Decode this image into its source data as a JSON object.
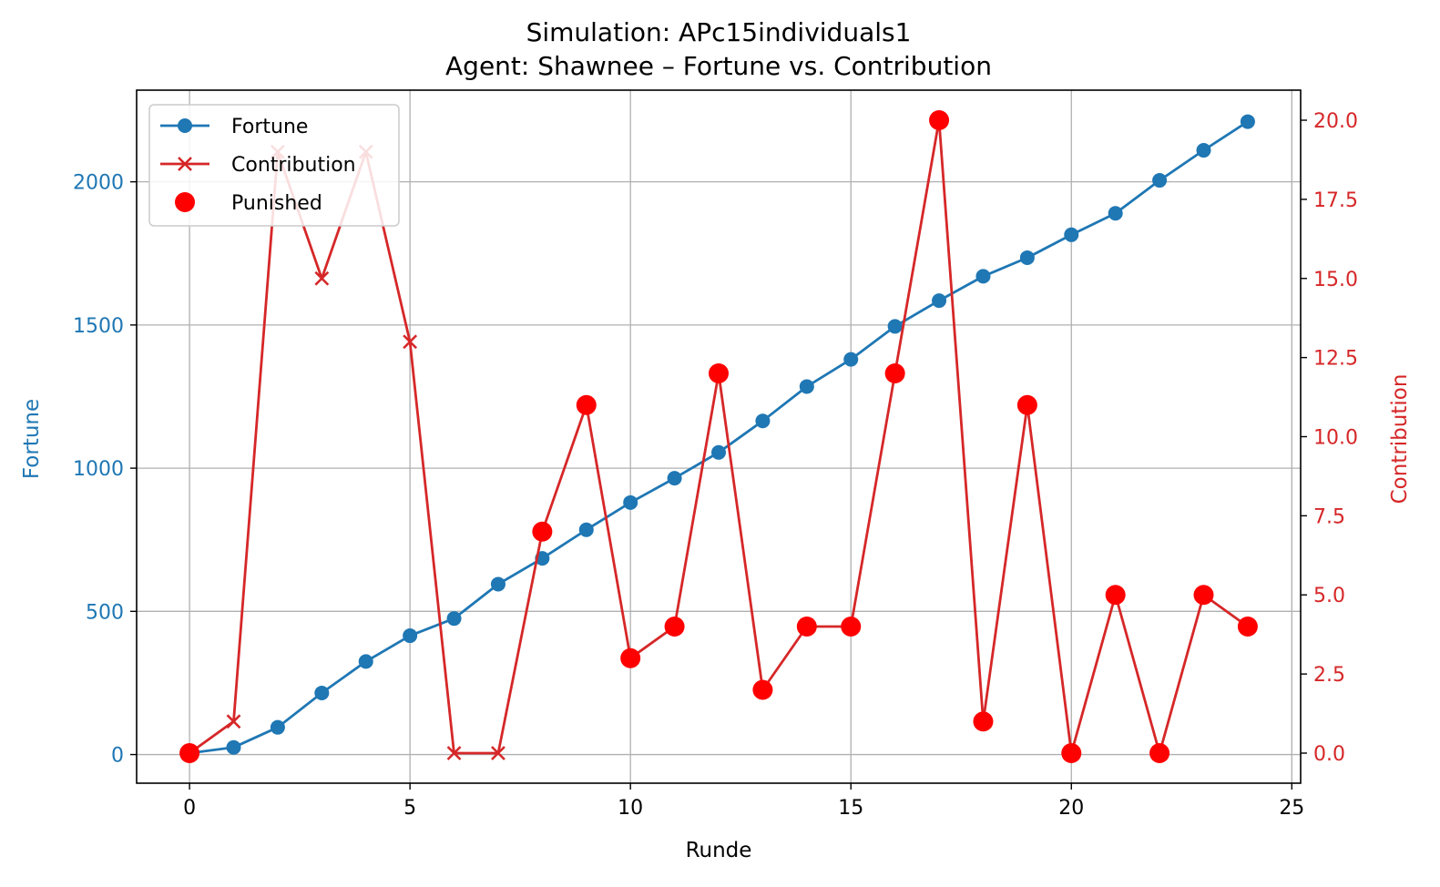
{
  "chart_data": {
    "type": "line",
    "title": "Simulation: APc15individuals1",
    "subtitle": "Agent: Shawnee – Fortune vs. Contribution",
    "xlabel": "Runde",
    "ylabel_left": "Fortune",
    "ylabel_right": "Contribution",
    "xlim": [
      -1.2,
      25.2
    ],
    "ylim_left": [
      -100,
      2320
    ],
    "ylim_right": [
      -0.95,
      20.95
    ],
    "x_ticks": [
      0,
      5,
      10,
      15,
      20,
      25
    ],
    "x_tick_labels": [
      "0",
      "5",
      "10",
      "15",
      "20",
      "25"
    ],
    "y_left_ticks": [
      0,
      500,
      1000,
      1500,
      2000
    ],
    "y_left_tick_labels": [
      "0",
      "500",
      "1000",
      "1500",
      "2000"
    ],
    "y_right_ticks": [
      0,
      2.5,
      5,
      7.5,
      10,
      12.5,
      15,
      17.5,
      20
    ],
    "y_right_tick_labels": [
      "0.0",
      "2.5",
      "5.0",
      "7.5",
      "10.0",
      "12.5",
      "15.0",
      "17.5",
      "20.0"
    ],
    "grid": true,
    "legend_position": "top-left",
    "colors": {
      "fortune": "#1f77b4",
      "contribution": "#d62728",
      "punished": "#ff0000"
    },
    "x": [
      0,
      1,
      2,
      3,
      4,
      5,
      6,
      7,
      8,
      9,
      10,
      11,
      12,
      13,
      14,
      15,
      16,
      17,
      18,
      19,
      20,
      21,
      22,
      23,
      24
    ],
    "series": [
      {
        "name": "Fortune",
        "axis": "left",
        "marker": "circle",
        "values": [
          5,
          25,
          95,
          215,
          325,
          415,
          475,
          595,
          685,
          785,
          880,
          965,
          1055,
          1165,
          1285,
          1380,
          1495,
          1585,
          1670,
          1735,
          1815,
          1890,
          2005,
          2110,
          2210
        ]
      },
      {
        "name": "Contribution",
        "axis": "right",
        "marker": "x",
        "values": [
          0,
          1,
          19,
          15,
          19,
          13,
          0,
          0,
          7,
          11,
          3,
          4,
          12,
          2,
          4,
          4,
          12,
          20,
          1,
          11,
          0,
          5,
          0,
          5,
          4
        ]
      },
      {
        "name": "Punished",
        "axis": "right",
        "marker": "dot",
        "x": [
          0,
          8,
          9,
          10,
          11,
          12,
          13,
          14,
          15,
          16,
          17,
          18,
          19,
          20,
          21,
          22,
          23,
          24
        ],
        "values": [
          0,
          7,
          11,
          3,
          4,
          12,
          2,
          4,
          4,
          12,
          20,
          1,
          11,
          0,
          5,
          0,
          5,
          4
        ]
      }
    ]
  }
}
